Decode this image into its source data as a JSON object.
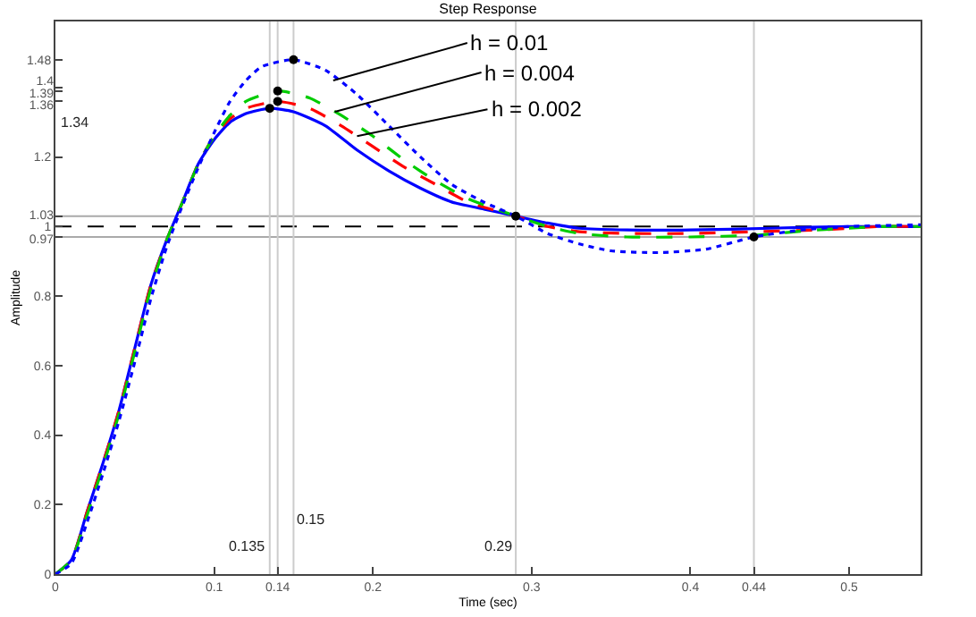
{
  "chart_data": {
    "type": "line",
    "title": "Step Response",
    "xlabel": "Time (sec)",
    "ylabel": "Amplitude",
    "xlim": [
      0,
      0.545
    ],
    "ylim": [
      0,
      1.59
    ],
    "xticks": [
      0,
      0.1,
      0.14,
      0.2,
      0.3,
      0.4,
      0.44,
      0.5
    ],
    "yticks": [
      0,
      0.2,
      0.4,
      0.6,
      0.8,
      0.97,
      1,
      1.03,
      1.2,
      1.36,
      1.39,
      1.4,
      1.48
    ],
    "grid": false,
    "marker": "none",
    "series": [
      {
        "color": "#0000ff",
        "line_style": "solid",
        "x": [
          0,
          0.01,
          0.02,
          0.03,
          0.04,
          0.05,
          0.06,
          0.07,
          0.08,
          0.09,
          0.1,
          0.11,
          0.12,
          0.135,
          0.15,
          0.17,
          0.19,
          0.21,
          0.23,
          0.25,
          0.27,
          0.29,
          0.31,
          0.33,
          0.36,
          0.4,
          0.45,
          0.5,
          0.545
        ],
        "values": [
          0,
          0.04,
          0.18,
          0.32,
          0.47,
          0.65,
          0.83,
          0.96,
          1.07,
          1.18,
          1.25,
          1.3,
          1.325,
          1.34,
          1.33,
          1.29,
          1.22,
          1.16,
          1.11,
          1.07,
          1.05,
          1.03,
          1.01,
          0.995,
          0.99,
          0.99,
          0.995,
          1,
          1
        ]
      },
      {
        "color": "#ff0000",
        "line_style": "dashed",
        "x": [
          0,
          0.01,
          0.02,
          0.03,
          0.04,
          0.05,
          0.06,
          0.07,
          0.08,
          0.09,
          0.1,
          0.11,
          0.12,
          0.14,
          0.16,
          0.18,
          0.2,
          0.22,
          0.24,
          0.26,
          0.29,
          0.31,
          0.33,
          0.36,
          0.4,
          0.44,
          0.48,
          0.52,
          0.545
        ],
        "values": [
          0,
          0.04,
          0.18,
          0.32,
          0.47,
          0.65,
          0.83,
          0.96,
          1.07,
          1.18,
          1.26,
          1.31,
          1.34,
          1.36,
          1.34,
          1.29,
          1.23,
          1.17,
          1.12,
          1.07,
          1.03,
          1,
          0.985,
          0.98,
          0.98,
          0.985,
          0.99,
          1,
          1
        ]
      },
      {
        "color": "#00cc00",
        "line_style": "dashed",
        "x": [
          0,
          0.01,
          0.02,
          0.03,
          0.04,
          0.05,
          0.06,
          0.07,
          0.08,
          0.09,
          0.1,
          0.11,
          0.12,
          0.14,
          0.16,
          0.18,
          0.2,
          0.22,
          0.24,
          0.26,
          0.29,
          0.31,
          0.33,
          0.36,
          0.4,
          0.44,
          0.48,
          0.52,
          0.545
        ],
        "values": [
          0,
          0.04,
          0.17,
          0.31,
          0.46,
          0.64,
          0.82,
          0.96,
          1.07,
          1.18,
          1.26,
          1.32,
          1.36,
          1.39,
          1.37,
          1.32,
          1.26,
          1.19,
          1.13,
          1.08,
          1.03,
          1,
          0.98,
          0.97,
          0.97,
          0.975,
          0.99,
          1,
          1
        ]
      },
      {
        "color": "#0000ff",
        "line_style": "dotted",
        "x": [
          0,
          0.01,
          0.02,
          0.03,
          0.04,
          0.05,
          0.06,
          0.07,
          0.08,
          0.09,
          0.1,
          0.11,
          0.12,
          0.13,
          0.15,
          0.17,
          0.19,
          0.21,
          0.23,
          0.25,
          0.27,
          0.29,
          0.31,
          0.33,
          0.35,
          0.38,
          0.41,
          0.44,
          0.47,
          0.5,
          0.545
        ],
        "values": [
          0,
          0.03,
          0.15,
          0.29,
          0.44,
          0.61,
          0.79,
          0.94,
          1.06,
          1.17,
          1.27,
          1.36,
          1.42,
          1.46,
          1.48,
          1.45,
          1.38,
          1.29,
          1.2,
          1.12,
          1.07,
          1.03,
          0.98,
          0.95,
          0.93,
          0.925,
          0.935,
          0.97,
          0.99,
          1,
          1.005
        ]
      },
      {
        "type": "scatter",
        "marker": "circle",
        "color": "#000000",
        "x": [
          0.135,
          0.14,
          0.14,
          0.15,
          0.29,
          0.44
        ],
        "values": [
          1.34,
          1.36,
          1.39,
          1.48,
          1.03,
          0.97
        ]
      }
    ],
    "ref_lines": [
      {
        "axis": "y",
        "value": 1,
        "color": "#000000",
        "line_style": "dashed"
      },
      {
        "axis": "y",
        "value": 1.03,
        "color": "#aaaaaa",
        "line_style": "solid"
      },
      {
        "axis": "y",
        "value": 0.97,
        "color": "#aaaaaa",
        "line_style": "solid"
      },
      {
        "axis": "x",
        "value": 0.135,
        "label": "0.135",
        "color": "#cccccc",
        "line_style": "solid"
      },
      {
        "axis": "x",
        "value": 0.14,
        "color": "#cccccc",
        "line_style": "solid"
      },
      {
        "axis": "x",
        "value": 0.15,
        "label": "0.15",
        "color": "#cccccc",
        "line_style": "solid"
      },
      {
        "axis": "x",
        "value": 0.29,
        "label": "0.29",
        "color": "#cccccc",
        "line_style": "solid"
      },
      {
        "axis": "x",
        "value": 0.44,
        "color": "#cccccc",
        "line_style": "solid"
      }
    ],
    "annotations": [
      {
        "text": "h = 0.01",
        "x": 0.175,
        "y": 1.42
      },
      {
        "text": "h = 0.004",
        "x": 0.176,
        "y": 1.33
      },
      {
        "text": "h = 0.002",
        "x": 0.19,
        "y": 1.26
      },
      "1.34"
    ]
  }
}
